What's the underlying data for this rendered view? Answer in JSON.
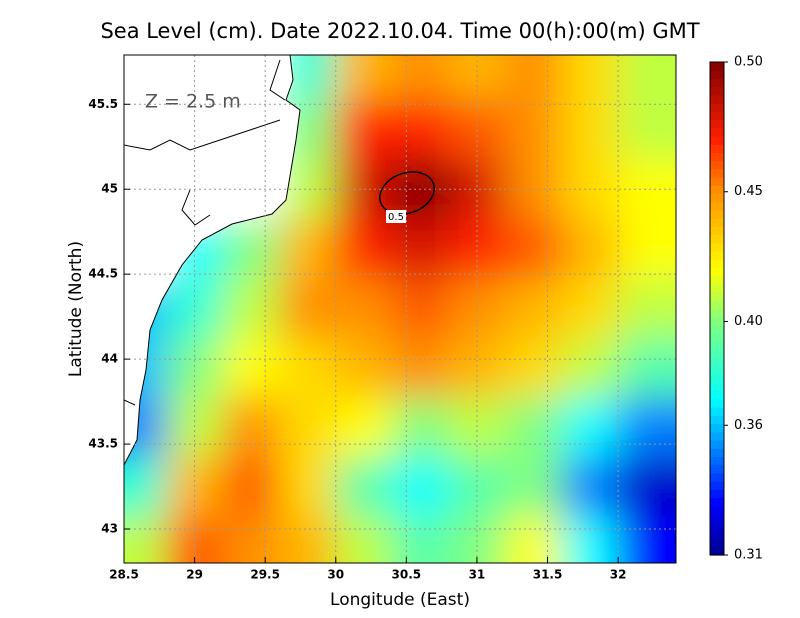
{
  "chart_data": {
    "type": "heatmap",
    "title": "Sea Level (cm). Date 2022.10.04. Time 00(h):00(m) GMT",
    "annotation": "Z = 2.5 m",
    "x_label": "Longitude (East)",
    "y_label": "Latitude (North)",
    "xlim": [
      28.5,
      32.41
    ],
    "ylim": [
      42.8,
      45.79
    ],
    "xticks": [
      28.5,
      29,
      29.5,
      30,
      30.5,
      31,
      31.5,
      32
    ],
    "yticks": [
      43,
      43.5,
      44,
      44.5,
      45,
      45.5
    ],
    "grid": true,
    "x": [
      28.6,
      29.0,
      29.4,
      29.8,
      30.2,
      30.6,
      31.0,
      31.4,
      31.8,
      32.2
    ],
    "y": [
      45.7,
      45.35,
      45.0,
      44.65,
      44.3,
      43.95,
      43.6,
      43.25,
      42.9
    ],
    "z": [
      [
        null,
        null,
        null,
        0.38,
        0.44,
        0.45,
        0.44,
        0.45,
        0.43,
        0.41
      ],
      [
        null,
        null,
        null,
        0.4,
        0.47,
        0.47,
        0.46,
        0.45,
        0.43,
        0.41
      ],
      [
        null,
        null,
        null,
        0.41,
        0.48,
        0.5,
        0.48,
        0.45,
        0.43,
        0.42
      ],
      [
        null,
        0.37,
        0.4,
        0.44,
        0.47,
        0.48,
        0.47,
        0.46,
        0.44,
        0.42
      ],
      [
        0.36,
        0.38,
        0.41,
        0.45,
        0.45,
        0.46,
        0.45,
        0.44,
        0.43,
        0.41
      ],
      [
        0.36,
        0.4,
        0.42,
        0.43,
        0.44,
        0.45,
        0.44,
        0.43,
        0.41,
        0.39
      ],
      [
        0.35,
        0.41,
        0.45,
        0.43,
        0.42,
        0.4,
        0.41,
        0.4,
        0.37,
        0.35
      ],
      [
        0.38,
        0.44,
        0.46,
        0.43,
        0.39,
        0.37,
        0.39,
        0.4,
        0.35,
        0.32
      ],
      [
        0.41,
        0.46,
        0.45,
        0.44,
        0.41,
        0.39,
        0.4,
        0.42,
        0.37,
        0.33
      ]
    ],
    "clim": [
      0.31,
      0.5
    ],
    "colorbar_ticks": [
      {
        "value": 0.31,
        "label": "0.31"
      },
      {
        "value": 0.36,
        "label": "0.36"
      },
      {
        "value": 0.4,
        "label": "0.40"
      },
      {
        "value": 0.45,
        "label": "0.45"
      },
      {
        "value": 0.5,
        "label": "0.50"
      }
    ],
    "colorscale": [
      [
        0.31,
        "#00008f"
      ],
      [
        0.33,
        "#0000ff"
      ],
      [
        0.355,
        "#00a0ff"
      ],
      [
        0.37,
        "#00ffff"
      ],
      [
        0.4,
        "#80ff80"
      ],
      [
        0.42,
        "#ffff00"
      ],
      [
        0.45,
        "#ff9000"
      ],
      [
        0.47,
        "#ff2000"
      ],
      [
        0.5,
        "#800000"
      ]
    ],
    "contour_level": 0.5
  }
}
